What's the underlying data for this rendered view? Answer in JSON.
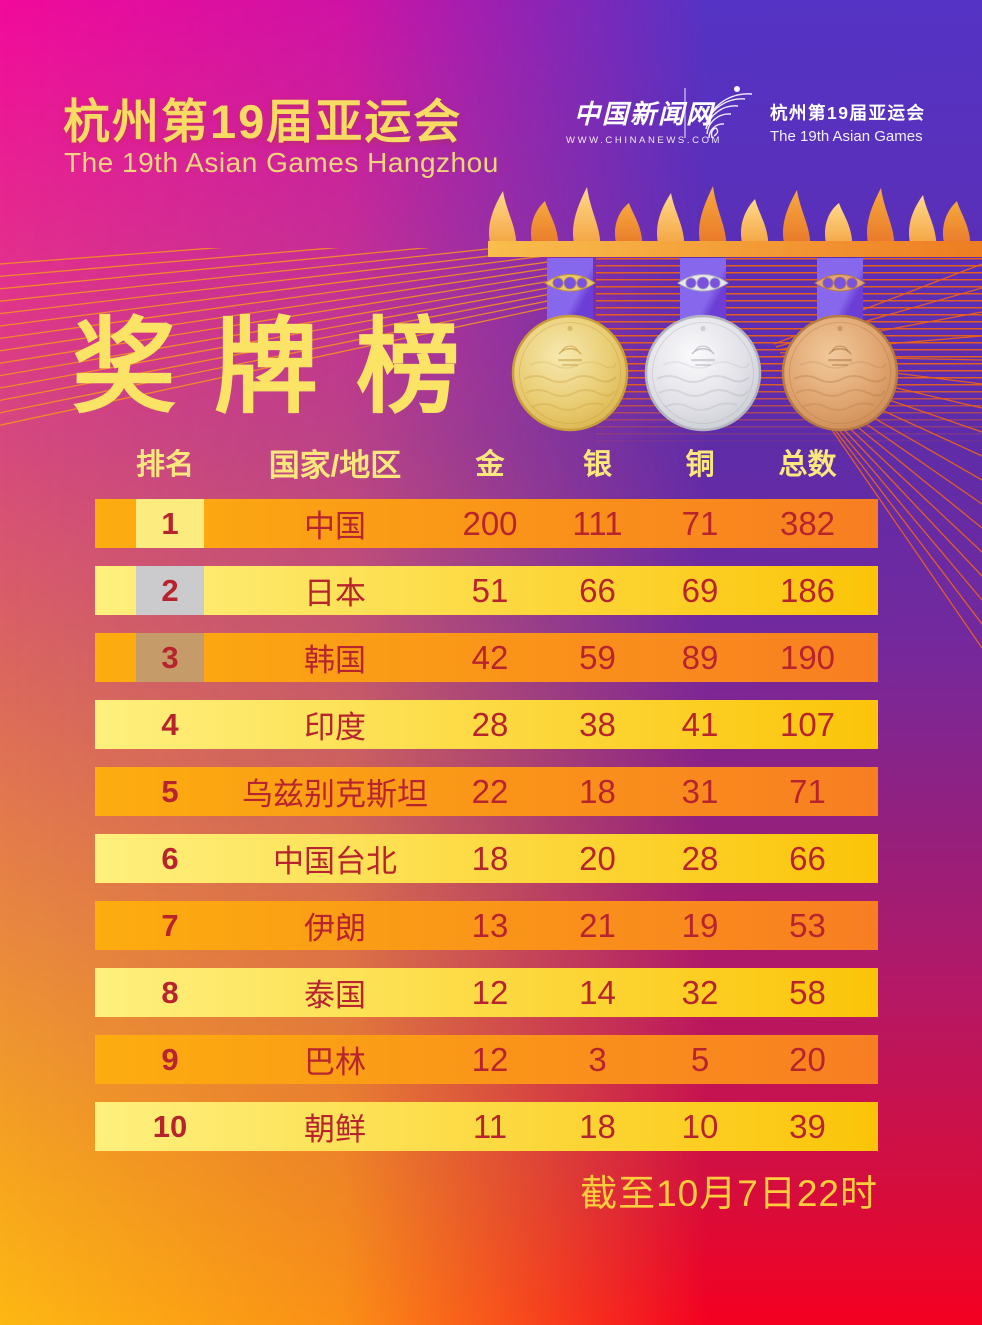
{
  "poster": {
    "header": {
      "title_cn": "杭州第19届亚运会",
      "subtitle_en": "The 19th Asian Games Hangzhou"
    },
    "brand": {
      "site_name": "中国新闻网",
      "site_url": "WWW.CHINANEWS.COM",
      "emblem_icon": "asian-games-fan-emblem",
      "games_title_cn": "杭州第19届亚运会",
      "games_title_en": "The 19th Asian Games"
    },
    "banner_title": "奖牌榜",
    "medal_icons": [
      "gold-medal",
      "silver-medal",
      "bronze-medal"
    ],
    "footer_note": "截至10月7日22时"
  },
  "table": {
    "columns": [
      "排名",
      "国家/地区",
      "金",
      "银",
      "铜",
      "总数"
    ],
    "rows": [
      {
        "rank": "1",
        "country": "中国",
        "gold": "200",
        "silver": "111",
        "bronze": "71",
        "total": "382",
        "medal": "gold"
      },
      {
        "rank": "2",
        "country": "日本",
        "gold": "51",
        "silver": "66",
        "bronze": "69",
        "total": "186",
        "medal": "silver"
      },
      {
        "rank": "3",
        "country": "韩国",
        "gold": "42",
        "silver": "59",
        "bronze": "89",
        "total": "190",
        "medal": "bronze"
      },
      {
        "rank": "4",
        "country": "印度",
        "gold": "28",
        "silver": "38",
        "bronze": "41",
        "total": "107",
        "medal": ""
      },
      {
        "rank": "5",
        "country": "乌兹别克斯坦",
        "gold": "22",
        "silver": "18",
        "bronze": "31",
        "total": "71",
        "medal": ""
      },
      {
        "rank": "6",
        "country": "中国台北",
        "gold": "18",
        "silver": "20",
        "bronze": "28",
        "total": "66",
        "medal": ""
      },
      {
        "rank": "7",
        "country": "伊朗",
        "gold": "13",
        "silver": "21",
        "bronze": "19",
        "total": "53",
        "medal": ""
      },
      {
        "rank": "8",
        "country": "泰国",
        "gold": "12",
        "silver": "14",
        "bronze": "32",
        "total": "58",
        "medal": ""
      },
      {
        "rank": "9",
        "country": "巴林",
        "gold": "12",
        "silver": "3",
        "bronze": "5",
        "total": "20",
        "medal": ""
      },
      {
        "rank": "10",
        "country": "朝鲜",
        "gold": "11",
        "silver": "18",
        "bronze": "10",
        "total": "39",
        "medal": ""
      }
    ]
  },
  "chart_data": {
    "type": "table",
    "title": "奖牌榜",
    "subtitle": "杭州第19届亚运会 The 19th Asian Games Hangzhou",
    "columns": [
      "排名",
      "国家/地区",
      "金",
      "银",
      "铜",
      "总数"
    ],
    "rows": [
      [
        1,
        "中国",
        200,
        111,
        71,
        382
      ],
      [
        2,
        "日本",
        51,
        66,
        69,
        186
      ],
      [
        3,
        "韩国",
        42,
        59,
        89,
        190
      ],
      [
        4,
        "印度",
        28,
        38,
        41,
        107
      ],
      [
        5,
        "乌兹别克斯坦",
        22,
        18,
        31,
        71
      ],
      [
        6,
        "中国台北",
        18,
        20,
        28,
        66
      ],
      [
        7,
        "伊朗",
        13,
        21,
        19,
        53
      ],
      [
        8,
        "泰国",
        12,
        14,
        32,
        58
      ],
      [
        9,
        "巴林",
        12,
        3,
        5,
        20
      ],
      [
        10,
        "朝鲜",
        11,
        18,
        10,
        39
      ]
    ],
    "note": "截至10月7日22时"
  },
  "colors": {
    "accent_yellow": "#FBE366",
    "header_text": "#FBE87D",
    "row_text": "#B7242E",
    "row_orange_start": "#FCAD0F",
    "row_orange_end": "#F87E22",
    "row_yellow_start": "#FEF07E",
    "row_yellow_end": "#FBC408",
    "rank_gold_box": "#FCEC7F",
    "rank_silver_box": "#CBCBCD",
    "rank_bronze_box": "#C49B69",
    "bg_top_left": "#F20A9B",
    "bg_top_right": "#5533C4",
    "bg_bottom_left": "#FDB813",
    "bg_bottom_right": "#F50021"
  }
}
